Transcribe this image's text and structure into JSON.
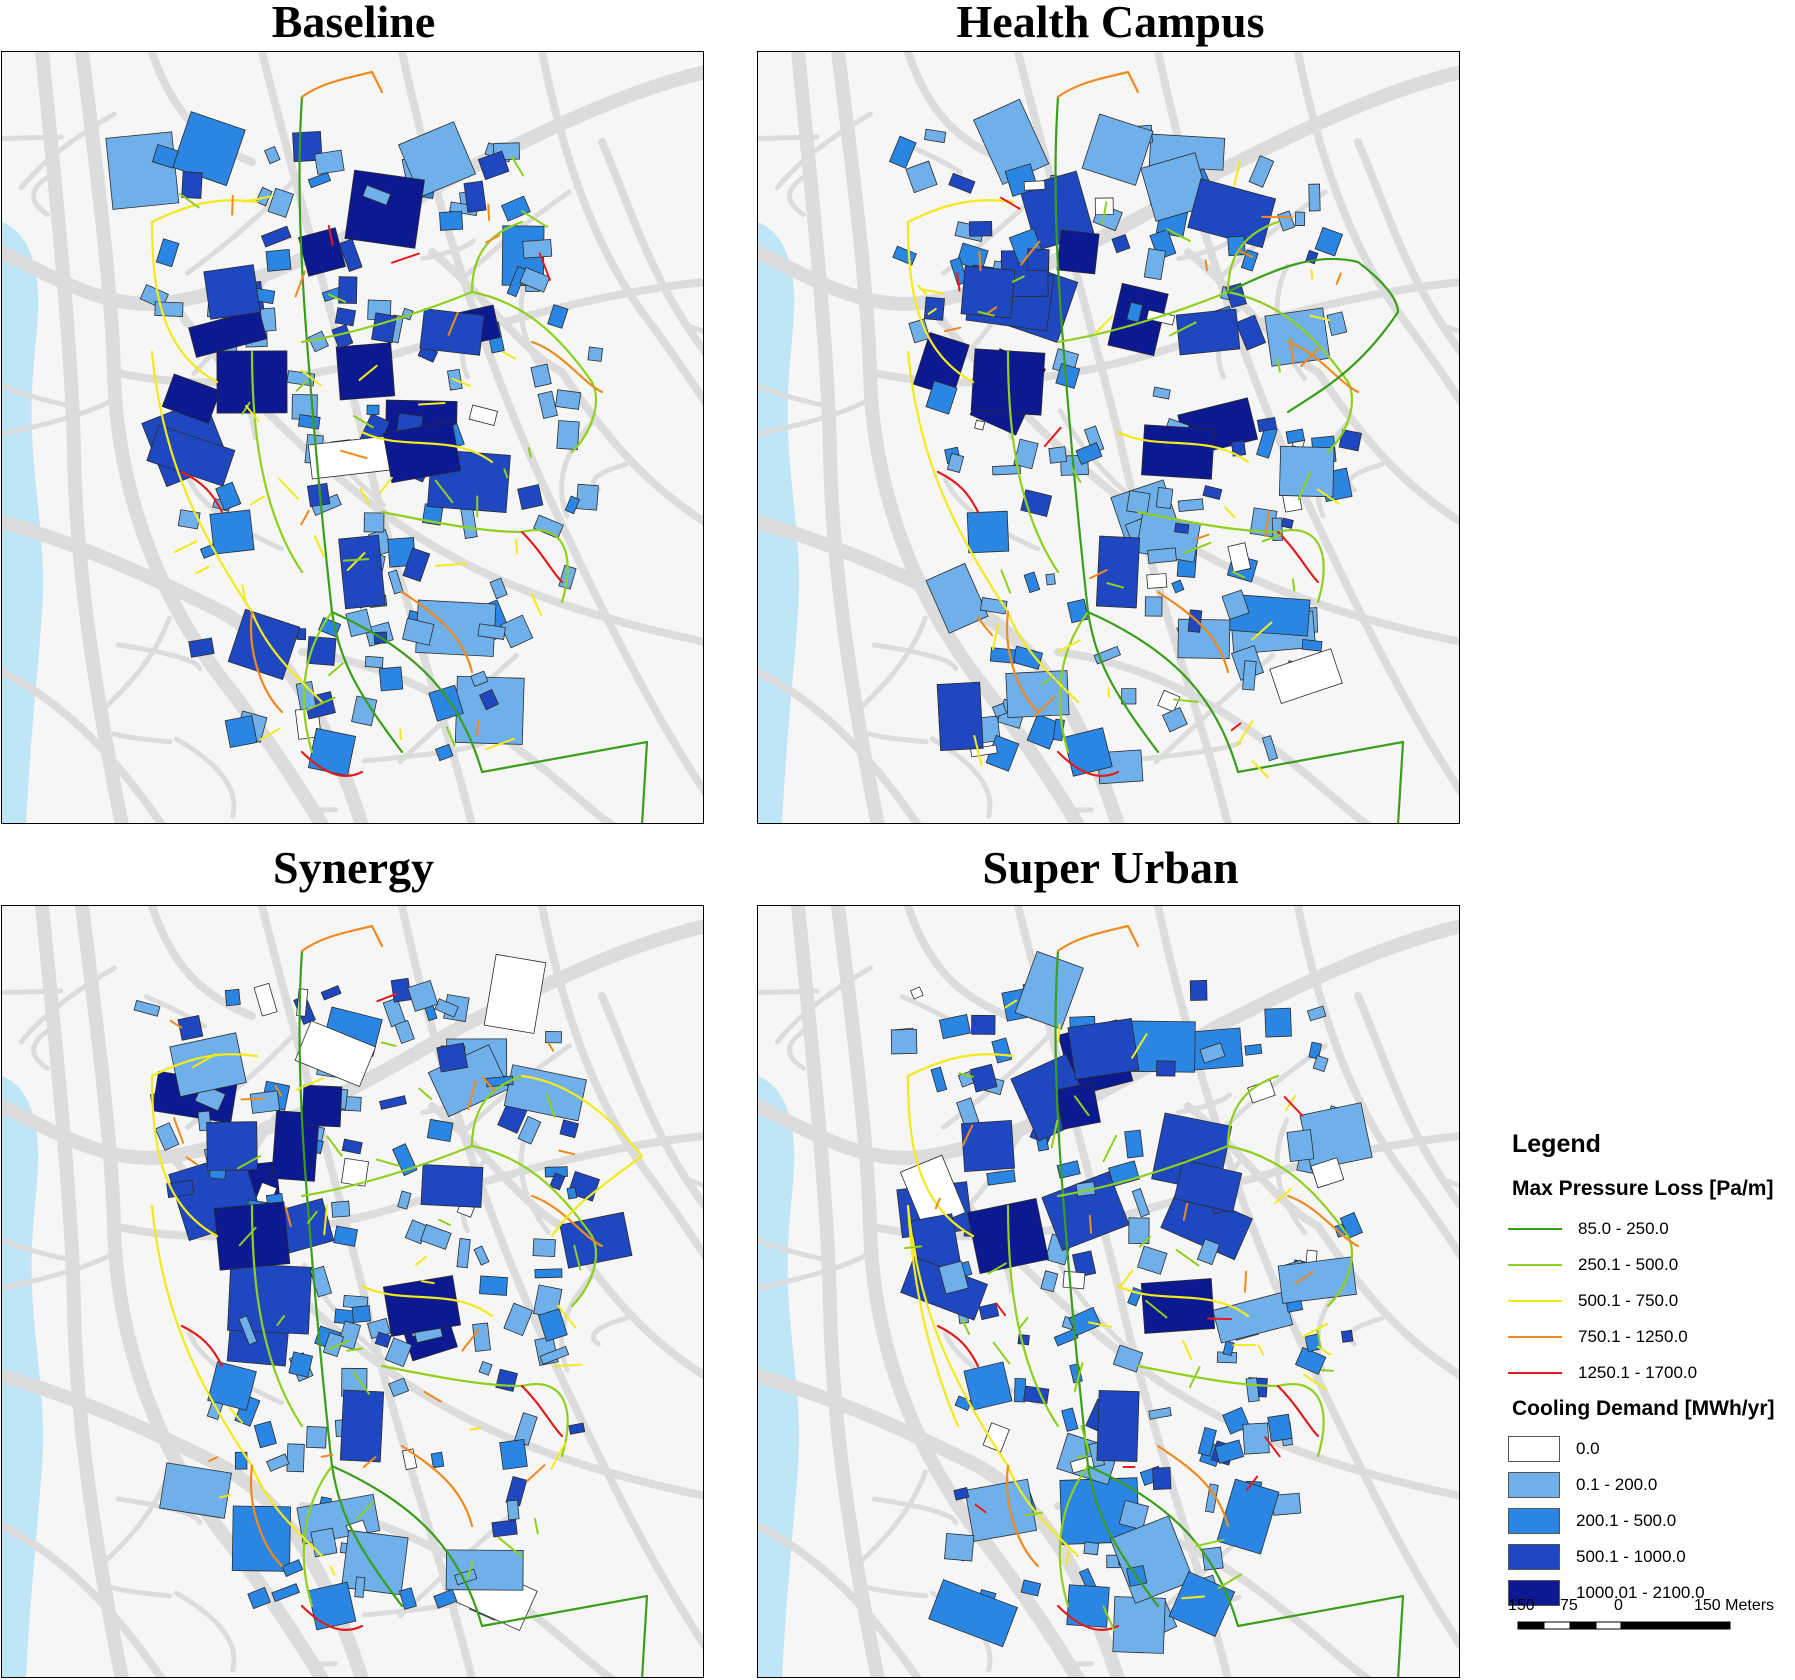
{
  "panels": [
    {
      "title": "Baseline"
    },
    {
      "title": "Health Campus"
    },
    {
      "title": "Synergy"
    },
    {
      "title": "Super Urban"
    }
  ],
  "legend": {
    "title": "Legend",
    "pressure_heading": "Max Pressure Loss [Pa/m]",
    "pressure_classes": [
      {
        "label": "85.0 - 250.0",
        "color": "#3a9e1a"
      },
      {
        "label": "250.1 - 500.0",
        "color": "#8fd01e"
      },
      {
        "label": "500.1 - 750.0",
        "color": "#f2ea1a"
      },
      {
        "label": "750.1 - 1250.0",
        "color": "#ef8a1e"
      },
      {
        "label": "1250.1 - 1700.0",
        "color": "#e21c1c"
      }
    ],
    "cooling_heading": "Cooling Demand [MWh/yr]",
    "cooling_classes": [
      {
        "label": "0.0",
        "color": "#ffffff"
      },
      {
        "label": "0.1 - 200.0",
        "color": "#6fb0ea"
      },
      {
        "label": "200.1 - 500.0",
        "color": "#2a86e2"
      },
      {
        "label": "500.1 - 1000.0",
        "color": "#1f48c0"
      },
      {
        "label": "1000.01 - 2100.0",
        "color": "#0c1990"
      }
    ]
  },
  "scale": {
    "labels": [
      "150",
      "75",
      "0",
      "150 Meters"
    ]
  },
  "colors": {
    "water": "#bfe6f7",
    "street": "#dcdcdc",
    "background": "#f6f6f6"
  }
}
